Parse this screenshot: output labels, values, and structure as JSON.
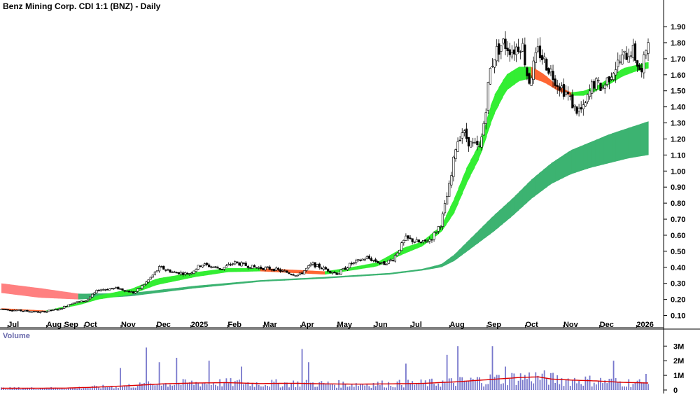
{
  "chart_data": [
    {
      "type": "candlestick",
      "title": "Benz Mining Corp. CDI 1:1 (BNZ) - Daily",
      "ylim": [
        0.05,
        1.97
      ],
      "yticks": [
        "0.10",
        "0.20",
        "0.30",
        "0.40",
        "0.50",
        "0.60",
        "0.70",
        "0.80",
        "0.90",
        "1.00",
        "1.10",
        "1.20",
        "1.30",
        "1.40",
        "1.50",
        "1.60",
        "1.70",
        "1.80",
        "1.90"
      ],
      "xticks": [
        {
          "label": "Jul",
          "t": 0.01
        },
        {
          "label": "Aug",
          "t": 0.07
        },
        {
          "label": "Sep",
          "t": 0.097
        },
        {
          "label": "Oct",
          "t": 0.128
        },
        {
          "label": "Nov",
          "t": 0.185
        },
        {
          "label": "Dec",
          "t": 0.24
        },
        {
          "label": "2025",
          "t": 0.293
        },
        {
          "label": "Feb",
          "t": 0.35
        },
        {
          "label": "Mar",
          "t": 0.405
        },
        {
          "label": "Apr",
          "t": 0.463
        },
        {
          "label": "May",
          "t": 0.519
        },
        {
          "label": "Jun",
          "t": 0.576
        },
        {
          "label": "Jul",
          "t": 0.633
        },
        {
          "label": "Aug",
          "t": 0.693
        },
        {
          "label": "Sep",
          "t": 0.751
        },
        {
          "label": "Oct",
          "t": 0.81
        },
        {
          "label": "Nov",
          "t": 0.869
        },
        {
          "label": "Dec",
          "t": 0.925
        },
        {
          "label": "2026",
          "t": 0.982
        }
      ],
      "price_anchors": [
        [
          0.0,
          0.14
        ],
        [
          0.03,
          0.13
        ],
        [
          0.06,
          0.12
        ],
        [
          0.09,
          0.14
        ],
        [
          0.11,
          0.18
        ],
        [
          0.13,
          0.19
        ],
        [
          0.15,
          0.26
        ],
        [
          0.18,
          0.27
        ],
        [
          0.205,
          0.24
        ],
        [
          0.225,
          0.31
        ],
        [
          0.245,
          0.4
        ],
        [
          0.265,
          0.37
        ],
        [
          0.29,
          0.36
        ],
        [
          0.31,
          0.42
        ],
        [
          0.34,
          0.39
        ],
        [
          0.36,
          0.43
        ],
        [
          0.39,
          0.4
        ],
        [
          0.42,
          0.39
        ],
        [
          0.44,
          0.37
        ],
        [
          0.46,
          0.35
        ],
        [
          0.48,
          0.42
        ],
        [
          0.5,
          0.39
        ],
        [
          0.52,
          0.36
        ],
        [
          0.54,
          0.42
        ],
        [
          0.565,
          0.46
        ],
        [
          0.59,
          0.42
        ],
        [
          0.605,
          0.45
        ],
        [
          0.625,
          0.58
        ],
        [
          0.65,
          0.55
        ],
        [
          0.665,
          0.58
        ],
        [
          0.68,
          0.68
        ],
        [
          0.695,
          0.95
        ],
        [
          0.703,
          1.17
        ],
        [
          0.712,
          1.25
        ],
        [
          0.725,
          1.17
        ],
        [
          0.74,
          1.14
        ],
        [
          0.748,
          1.36
        ],
        [
          0.755,
          1.62
        ],
        [
          0.763,
          1.73
        ],
        [
          0.775,
          1.8
        ],
        [
          0.79,
          1.75
        ],
        [
          0.805,
          1.8
        ],
        [
          0.815,
          1.55
        ],
        [
          0.83,
          1.75
        ],
        [
          0.845,
          1.65
        ],
        [
          0.86,
          1.55
        ],
        [
          0.875,
          1.48
        ],
        [
          0.888,
          1.38
        ],
        [
          0.9,
          1.38
        ],
        [
          0.915,
          1.55
        ],
        [
          0.93,
          1.52
        ],
        [
          0.945,
          1.63
        ],
        [
          0.96,
          1.7
        ],
        [
          0.975,
          1.76
        ],
        [
          0.99,
          1.6
        ],
        [
          1.0,
          1.85
        ]
      ],
      "ribbon_short": [
        [
          0.0,
          0.135,
          0.145
        ],
        [
          0.07,
          0.125,
          0.13
        ],
        [
          0.12,
          0.165,
          0.18
        ],
        [
          0.15,
          0.2,
          0.225
        ],
        [
          0.2,
          0.23,
          0.265
        ],
        [
          0.24,
          0.29,
          0.33
        ],
        [
          0.3,
          0.34,
          0.37
        ],
        [
          0.35,
          0.37,
          0.395
        ],
        [
          0.4,
          0.375,
          0.395
        ],
        [
          0.45,
          0.365,
          0.385
        ],
        [
          0.5,
          0.355,
          0.375
        ],
        [
          0.54,
          0.38,
          0.4
        ],
        [
          0.58,
          0.405,
          0.43
        ],
        [
          0.62,
          0.48,
          0.52
        ],
        [
          0.65,
          0.53,
          0.56
        ],
        [
          0.68,
          0.62,
          0.66
        ],
        [
          0.7,
          0.74,
          0.83
        ],
        [
          0.72,
          0.93,
          1.03
        ],
        [
          0.74,
          1.09,
          1.18
        ],
        [
          0.76,
          1.34,
          1.46
        ],
        [
          0.78,
          1.5,
          1.6
        ],
        [
          0.8,
          1.56,
          1.65
        ],
        [
          0.82,
          1.58,
          1.65
        ],
        [
          0.84,
          1.55,
          1.6
        ],
        [
          0.86,
          1.5,
          1.53
        ],
        [
          0.88,
          1.47,
          1.49
        ],
        [
          0.9,
          1.47,
          1.5
        ],
        [
          0.92,
          1.5,
          1.53
        ],
        [
          0.94,
          1.54,
          1.58
        ],
        [
          0.96,
          1.59,
          1.64
        ],
        [
          0.98,
          1.62,
          1.66
        ],
        [
          1.0,
          1.64,
          1.68
        ]
      ],
      "ribbon_long": [
        [
          0.0,
          0.24,
          0.3
        ],
        [
          0.06,
          0.21,
          0.27
        ],
        [
          0.12,
          0.2,
          0.235
        ],
        [
          0.2,
          0.22,
          0.24
        ],
        [
          0.3,
          0.27,
          0.285
        ],
        [
          0.4,
          0.31,
          0.32
        ],
        [
          0.5,
          0.33,
          0.34
        ],
        [
          0.6,
          0.355,
          0.365
        ],
        [
          0.65,
          0.38,
          0.39
        ],
        [
          0.68,
          0.4,
          0.42
        ],
        [
          0.7,
          0.44,
          0.48
        ],
        [
          0.73,
          0.53,
          0.6
        ],
        [
          0.76,
          0.62,
          0.72
        ],
        [
          0.79,
          0.72,
          0.83
        ],
        [
          0.82,
          0.83,
          0.95
        ],
        [
          0.85,
          0.92,
          1.05
        ],
        [
          0.88,
          0.98,
          1.13
        ],
        [
          0.91,
          1.02,
          1.18
        ],
        [
          0.94,
          1.05,
          1.23
        ],
        [
          0.97,
          1.08,
          1.27
        ],
        [
          1.0,
          1.1,
          1.31
        ]
      ]
    },
    {
      "type": "volume",
      "title": "Volume",
      "ylim": [
        0,
        3300000
      ],
      "yticks": [
        {
          "label": "0",
          "value": 0
        },
        {
          "label": "1M",
          "value": 1000000
        },
        {
          "label": "2M",
          "value": 2000000
        },
        {
          "label": "3M",
          "value": 3000000
        }
      ],
      "vol_ma": [
        [
          0.0,
          120000
        ],
        [
          0.1,
          130000
        ],
        [
          0.15,
          200000
        ],
        [
          0.2,
          300000
        ],
        [
          0.25,
          420000
        ],
        [
          0.3,
          480000
        ],
        [
          0.35,
          500000
        ],
        [
          0.4,
          440000
        ],
        [
          0.45,
          460000
        ],
        [
          0.5,
          420000
        ],
        [
          0.55,
          400000
        ],
        [
          0.6,
          420000
        ],
        [
          0.65,
          450000
        ],
        [
          0.7,
          550000
        ],
        [
          0.75,
          700000
        ],
        [
          0.8,
          850000
        ],
        [
          0.83,
          900000
        ],
        [
          0.85,
          750000
        ],
        [
          0.88,
          680000
        ],
        [
          0.92,
          620000
        ],
        [
          0.96,
          520000
        ],
        [
          1.0,
          480000
        ]
      ],
      "spikes": [
        [
          0.185,
          1500000
        ],
        [
          0.225,
          2900000
        ],
        [
          0.244,
          1900000
        ],
        [
          0.27,
          2200000
        ],
        [
          0.32,
          2000000
        ],
        [
          0.372,
          1600000
        ],
        [
          0.466,
          2800000
        ],
        [
          0.476,
          1900000
        ],
        [
          0.626,
          1800000
        ],
        [
          0.69,
          2400000
        ],
        [
          0.705,
          3000000
        ],
        [
          0.759,
          3000000
        ],
        [
          0.78,
          1600000
        ],
        [
          0.946,
          2000000
        ],
        [
          0.995,
          1100000
        ]
      ]
    }
  ],
  "colors": {
    "candle_line": "#000000",
    "candle_up": "#ffffff",
    "candle_down": "#000000",
    "short_ribbon_up": "#33ee33",
    "short_ribbon_down": "#ff6633",
    "long_ribbon_up": "#3cb371",
    "long_ribbon_down": "#ff8080",
    "volume_bar": "#7777cc",
    "volume_ma": "#dd0000",
    "axis_text": "#000000",
    "title_text": "#000000",
    "volume_title": "#6666aa"
  }
}
